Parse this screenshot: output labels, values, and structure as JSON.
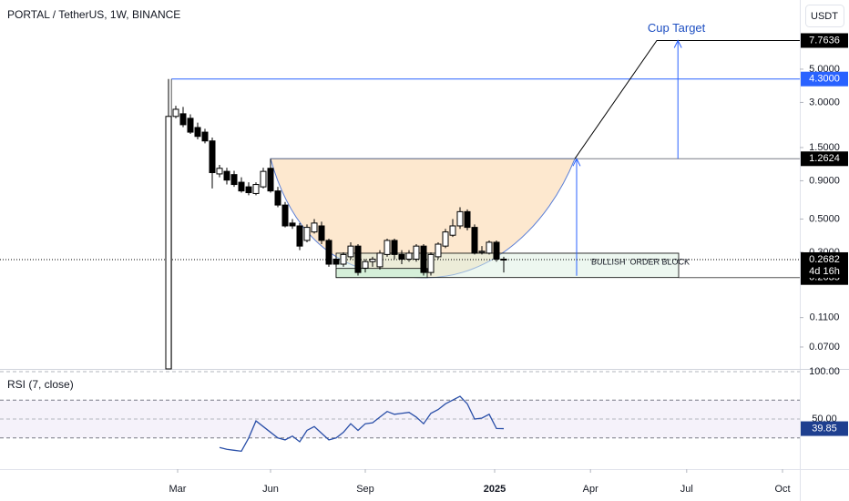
{
  "chart_data": [
    {
      "type": "candlestick",
      "title": "PORTAL / TetherUS, 1W, BINANCE",
      "currency": "USDT",
      "log_scale": true,
      "ylim": [
        0.05,
        14.47
      ],
      "yticks": [
        {
          "value": 5,
          "label": "5.0000"
        },
        {
          "value": 3,
          "label": "3.0000"
        },
        {
          "value": 1.5,
          "label": "1.5000"
        },
        {
          "value": 0.9,
          "label": "0.9000"
        },
        {
          "value": 0.5,
          "label": "0.5000"
        },
        {
          "value": 0.3,
          "label": "0.3000"
        },
        {
          "value": 0.11,
          "label": "0.1100"
        },
        {
          "value": 0.07,
          "label": "0.0700"
        }
      ],
      "xlim": [
        -23.125,
        86.625
      ],
      "xticks": [
        {
          "value": 1.25,
          "label": "Mar"
        },
        {
          "value": 14,
          "label": "Jun"
        },
        {
          "value": 27,
          "label": "Sep"
        },
        {
          "value": 44.75,
          "label": "2025"
        },
        {
          "value": 57.9,
          "label": "Apr"
        },
        {
          "value": 71.1,
          "label": "Jul"
        },
        {
          "value": 84.25,
          "label": "Oct"
        }
      ],
      "up_color": "#ffffff",
      "down_color": "#000000",
      "edge_color": "#000000",
      "open": [
        0.05,
        2.42,
        2.52,
        2.35,
        2.04,
        1.9,
        1.66,
        1.0,
        1.04,
        0.99,
        0.88,
        0.82,
        0.74,
        0.82,
        1.09,
        0.77,
        0.62,
        0.47,
        0.45,
        0.36,
        0.41,
        0.45,
        0.36,
        0.27,
        0.25,
        0.28,
        0.33,
        0.235,
        0.26,
        0.24,
        0.29,
        0.36,
        0.29,
        0.27,
        0.27,
        0.33,
        0.22,
        0.28,
        0.33,
        0.39,
        0.45,
        0.56,
        0.44,
        0.3,
        0.296,
        0.35,
        0.27
      ],
      "high": [
        4.3,
        2.85,
        2.8,
        2.5,
        2.2,
        2.0,
        1.75,
        1.15,
        1.1,
        1.05,
        0.95,
        0.88,
        0.88,
        1.1,
        1.26,
        0.82,
        0.65,
        0.5,
        0.47,
        0.46,
        0.5,
        0.48,
        0.37,
        0.28,
        0.3,
        0.35,
        0.34,
        0.27,
        0.28,
        0.31,
        0.37,
        0.37,
        0.31,
        0.31,
        0.34,
        0.34,
        0.3,
        0.35,
        0.43,
        0.5,
        0.6,
        0.58,
        0.46,
        0.33,
        0.36,
        0.36,
        0.28
      ],
      "low": [
        0.05,
        2.35,
        2.05,
        1.85,
        1.7,
        1.6,
        0.8,
        0.95,
        0.85,
        0.82,
        0.75,
        0.72,
        0.72,
        0.8,
        0.75,
        0.6,
        0.44,
        0.43,
        0.31,
        0.35,
        0.4,
        0.34,
        0.24,
        0.24,
        0.24,
        0.27,
        0.21,
        0.22,
        0.24,
        0.23,
        0.28,
        0.27,
        0.25,
        0.26,
        0.26,
        0.21,
        0.21,
        0.27,
        0.32,
        0.38,
        0.43,
        0.42,
        0.29,
        0.29,
        0.29,
        0.26,
        0.22
      ],
      "close": [
        2.42,
        2.7,
        2.13,
        1.9,
        1.78,
        1.66,
        1.02,
        1.09,
        0.91,
        0.85,
        0.77,
        0.75,
        0.85,
        1.04,
        0.77,
        0.62,
        0.45,
        0.45,
        0.33,
        0.44,
        0.47,
        0.36,
        0.25,
        0.25,
        0.29,
        0.33,
        0.22,
        0.26,
        0.27,
        0.296,
        0.36,
        0.29,
        0.27,
        0.296,
        0.33,
        0.22,
        0.29,
        0.34,
        0.41,
        0.45,
        0.56,
        0.44,
        0.296,
        0.305,
        0.35,
        0.27,
        0.2682
      ],
      "countdown": "4d 16h",
      "levels": [
        {
          "value": 7.7636,
          "color": "#000000"
        },
        {
          "value": {
            "value": 4.3,
            "label": "4.3000"
          },
          "color": "#2962ff"
        },
        {
          "value": 1.2624,
          "color": "#000000"
        },
        {
          "value": 0.2035,
          "color": "#000000"
        }
      ],
      "annotations": {
        "target": "Cup Target",
        "order_block": "BULLISH  ORDER BLOCK"
      }
    },
    {
      "type": "line",
      "title": "RSI (7, close)",
      "color": "#2a4fa8",
      "ylim": [
        0,
        100
      ],
      "yticks": [
        {
          "value": 100,
          "label": "100.00"
        },
        {
          "value": 50,
          "label": "50.00"
        }
      ],
      "bands": [
        30,
        70
      ],
      "values": [
        null,
        null,
        null,
        null,
        null,
        null,
        null,
        20,
        18,
        17,
        16,
        30,
        48,
        42,
        36,
        30,
        28,
        32,
        26,
        38,
        42,
        35,
        28,
        30,
        36,
        45,
        38,
        45,
        46,
        52,
        58,
        55,
        56,
        57,
        52,
        45,
        56,
        60,
        66,
        70,
        74,
        66,
        50,
        51,
        55,
        40,
        39.85
      ]
    }
  ]
}
